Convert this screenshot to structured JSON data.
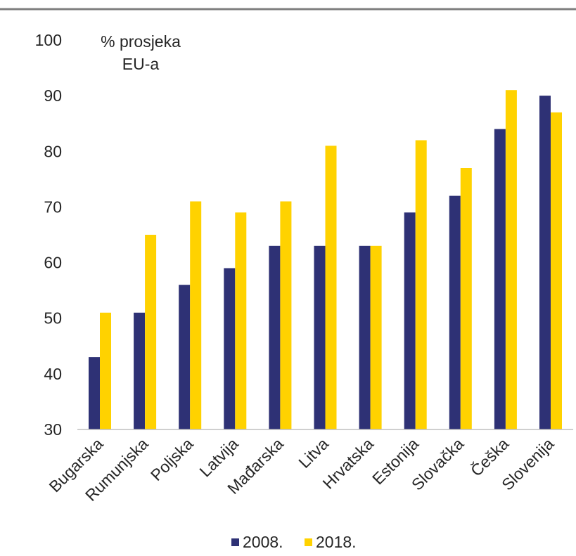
{
  "chart_data": {
    "type": "bar",
    "unit_label_lines": [
      "% prosjeka",
      "EU-a"
    ],
    "categories": [
      "Bugarska",
      "Rumunjska",
      "Poljska",
      "Latvija",
      "Mađarska",
      "Litva",
      "Hrvatska",
      "Estonija",
      "Slovačka",
      "Češka",
      "Slovenija"
    ],
    "series": [
      {
        "name": "2008.",
        "color": "#2e3175",
        "values": [
          43,
          51,
          56,
          59,
          63,
          63,
          63,
          69,
          72,
          84,
          90
        ]
      },
      {
        "name": "2018.",
        "color": "#ffd200",
        "values": [
          51,
          65,
          71,
          69,
          71,
          81,
          63,
          82,
          77,
          91,
          87
        ]
      }
    ],
    "ylim": [
      30,
      100
    ],
    "yticks": [
      30,
      40,
      50,
      60,
      70,
      80,
      90,
      100
    ],
    "grid": false,
    "legend_position": "bottom"
  }
}
